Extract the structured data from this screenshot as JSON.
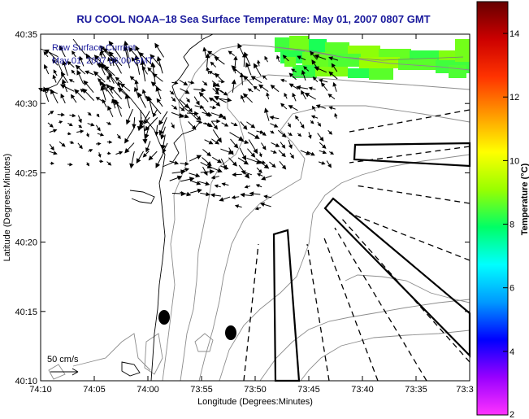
{
  "chart_data": {
    "type": "map",
    "title": "RU COOL  NOAA–18  Sea Surface Temperature:  May 01, 2007 0807 GMT",
    "xlabel": "Longitude (Degrees:Minutes)",
    "ylabel": "Latitude (Degrees:Minutes)",
    "x_ticks": [
      "74:10",
      "74:05",
      "74:00",
      "73:55",
      "73:50",
      "73:45",
      "73:40",
      "73:35",
      "73:3"
    ],
    "y_ticks": [
      "40:10",
      "40:15",
      "40:20",
      "40:25",
      "40:30",
      "40:35"
    ],
    "legend_lines": [
      "Raw Surface Current",
      "May 01, 2007 06:00 GMT"
    ],
    "scale_label": "50 cm/s",
    "colorbar": {
      "label": "Temperature (°C)",
      "range": [
        2,
        15
      ],
      "ticks": [
        "2",
        "4",
        "6",
        "8",
        "10",
        "12",
        "14"
      ],
      "colors": [
        "#ff33ff",
        "#9900ff",
        "#0000ff",
        "#0099ff",
        "#00ffff",
        "#00ff66",
        "#99ff00",
        "#ffff00",
        "#ff9900",
        "#ff3300",
        "#cc0000",
        "#660000"
      ]
    },
    "sst_patch_temp_c": 8.5,
    "markers": [
      "dot",
      "dot"
    ],
    "colors": {
      "title": "#1a1a9c",
      "legend": "#1a1a9c",
      "land_contour": "#000000",
      "bathymetry": "#888888",
      "arrows": "#000000"
    }
  }
}
